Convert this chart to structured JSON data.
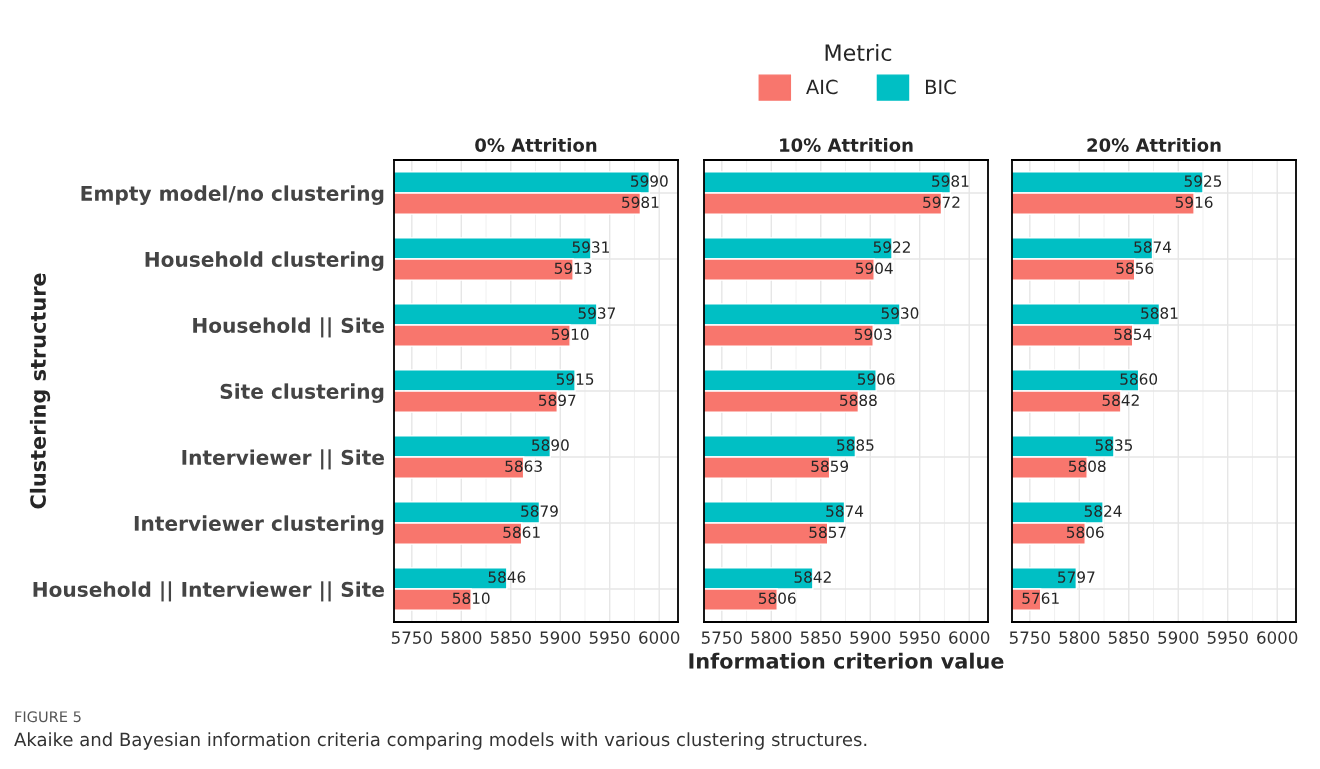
{
  "chart_data": [
    {
      "type": "bar",
      "orientation": "horizontal",
      "title": "0% Attrition",
      "ylabel": "Clustering structure",
      "legend_title": "Metric",
      "legend": "top",
      "grid": true,
      "data_labels": true,
      "categories": [
        "Empty model/no clustering",
        "Household clustering",
        "Household || Site",
        "Site clustering",
        "Interviewer || Site",
        "Interviewer clustering",
        "Household || Interviewer || Site"
      ],
      "series": [
        {
          "name": "BIC",
          "color": "#00bfc4",
          "values": [
            5990,
            5931,
            5937,
            5915,
            5890,
            5879,
            5846
          ]
        },
        {
          "name": "AIC",
          "color": "#f8766d",
          "values": [
            5981,
            5913,
            5910,
            5897,
            5863,
            5861,
            5810
          ]
        }
      ],
      "xlim": [
        5732,
        6019
      ],
      "xticks": [
        5750,
        5800,
        5850,
        5900,
        5950,
        6000
      ],
      "annotations": [
        "FIGURE 5",
        "Akaike and Bayesian information criteria comparing models with various clustering structures."
      ]
    },
    {
      "type": "bar",
      "orientation": "horizontal",
      "title": "10% Attrition",
      "xlabel": "Information criterion value",
      "grid": true,
      "data_labels": true,
      "tick_labels": "x",
      "series": [
        {
          "color": "#00bfc4",
          "values": [
            5981,
            5922,
            5930,
            5906,
            5885,
            5874,
            5842
          ]
        },
        {
          "color": "#f8766d",
          "values": [
            5972,
            5904,
            5903,
            5888,
            5859,
            5857,
            5806
          ]
        }
      ],
      "xlim": [
        5732,
        6019
      ],
      "xticks": [
        5750,
        5800,
        5850,
        5900,
        5950,
        6000
      ]
    },
    {
      "type": "bar",
      "orientation": "horizontal",
      "title": "20% Attrition",
      "grid": true,
      "data_labels": true,
      "tick_labels": "x",
      "series": [
        {
          "color": "#00bfc4",
          "values": [
            5925,
            5874,
            5881,
            5860,
            5835,
            5824,
            5797
          ]
        },
        {
          "color": "#f8766d",
          "values": [
            5916,
            5856,
            5854,
            5842,
            5808,
            5806,
            5761
          ]
        }
      ],
      "xlim": [
        5732,
        6019
      ],
      "xticks": [
        5750,
        5800,
        5850,
        5900,
        5950,
        6000
      ]
    }
  ]
}
